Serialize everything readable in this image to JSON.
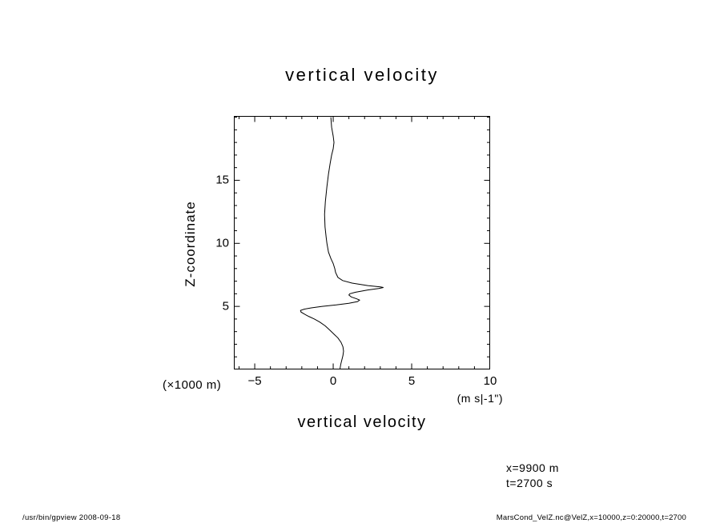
{
  "page": {
    "annotation_x": "x=9900 m",
    "annotation_t": "t=2700 s",
    "footer_left": "/usr/bin/gpview  2008-09-18",
    "footer_right": "MarsCond_VelZ.nc@VelZ,x=10000,z=0:20000,t=2700"
  },
  "chart_data": {
    "type": "line",
    "title": "vertical velocity",
    "xlabel": "vertical velocity",
    "x_units": "(m s|-1\")",
    "ylabel": "Z-coordinate",
    "y_units": "(×1000 m)",
    "xlim": [
      -6.33,
      10.0
    ],
    "ylim": [
      0.0,
      20.1
    ],
    "xticks_major": [
      -5,
      0,
      5,
      10
    ],
    "xtick_labels": [
      "−5",
      "0",
      "5",
      "10"
    ],
    "yticks_major": [
      5,
      10,
      15
    ],
    "ytick_labels": [
      "5",
      "10",
      "15"
    ],
    "minor_tick_step": 1,
    "grid": false,
    "line_color": "#000000",
    "frame_color": "#000000",
    "legend": "none",
    "series": [
      {
        "name": "VelZ",
        "points": [
          [
            -0.15,
            20.0
          ],
          [
            -0.1,
            19.2
          ],
          [
            0.0,
            18.5
          ],
          [
            0.05,
            18.0
          ],
          [
            0.0,
            17.5
          ],
          [
            -0.1,
            17.0
          ],
          [
            -0.2,
            16.3
          ],
          [
            -0.3,
            15.5
          ],
          [
            -0.4,
            14.5
          ],
          [
            -0.5,
            13.3
          ],
          [
            -0.55,
            12.3
          ],
          [
            -0.52,
            11.3
          ],
          [
            -0.45,
            10.5
          ],
          [
            -0.4,
            10.0
          ],
          [
            -0.3,
            9.3
          ],
          [
            -0.15,
            8.8
          ],
          [
            0.0,
            8.4
          ],
          [
            0.1,
            8.0
          ],
          [
            0.15,
            7.7
          ],
          [
            0.3,
            7.3
          ],
          [
            0.6,
            7.05
          ],
          [
            1.2,
            6.85
          ],
          [
            2.2,
            6.65
          ],
          [
            3.0,
            6.55
          ],
          [
            3.2,
            6.5
          ],
          [
            2.9,
            6.42
          ],
          [
            2.2,
            6.3
          ],
          [
            1.4,
            6.12
          ],
          [
            1.05,
            6.0
          ],
          [
            1.0,
            5.9
          ],
          [
            1.15,
            5.75
          ],
          [
            1.5,
            5.6
          ],
          [
            1.68,
            5.5
          ],
          [
            1.55,
            5.38
          ],
          [
            1.0,
            5.25
          ],
          [
            0.2,
            5.12
          ],
          [
            -0.7,
            5.0
          ],
          [
            -1.4,
            4.88
          ],
          [
            -1.85,
            4.78
          ],
          [
            -2.08,
            4.68
          ],
          [
            -2.05,
            4.55
          ],
          [
            -1.85,
            4.4
          ],
          [
            -1.55,
            4.2
          ],
          [
            -1.2,
            4.0
          ],
          [
            -0.85,
            3.75
          ],
          [
            -0.5,
            3.45
          ],
          [
            -0.2,
            3.1
          ],
          [
            0.05,
            2.8
          ],
          [
            0.3,
            2.5
          ],
          [
            0.5,
            2.15
          ],
          [
            0.62,
            1.8
          ],
          [
            0.66,
            1.45
          ],
          [
            0.62,
            1.1
          ],
          [
            0.55,
            0.75
          ],
          [
            0.48,
            0.4
          ],
          [
            0.44,
            0.1
          ],
          [
            0.43,
            0.0
          ]
        ]
      }
    ]
  }
}
